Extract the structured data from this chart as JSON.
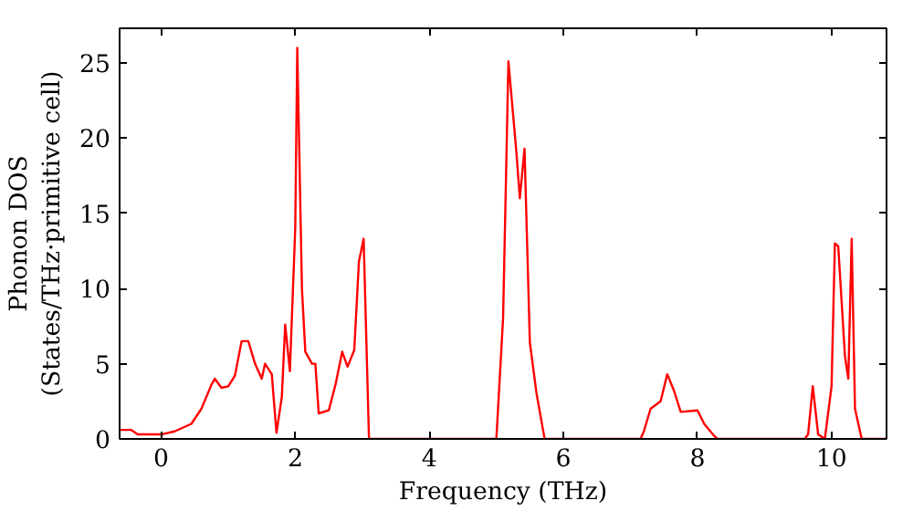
{
  "chart_data": {
    "type": "line",
    "xlabel": "Frequency (THz)",
    "ylabel": "Phonon DOS\n(States/THz·primitive cell)",
    "xlim": [
      -0.62,
      10.82
    ],
    "ylim": [
      0,
      27.3
    ],
    "xticks": [
      0,
      2,
      4,
      6,
      8,
      10
    ],
    "yticks": [
      0,
      5,
      10,
      15,
      20,
      25
    ],
    "grid": false,
    "series": [
      {
        "color": "#ff0000",
        "x": [
          -0.62,
          -0.45,
          -0.35,
          0,
          0.2,
          0.45,
          0.6,
          0.75,
          0.8,
          0.9,
          1.0,
          1.1,
          1.2,
          1.3,
          1.4,
          1.5,
          1.55,
          1.65,
          1.72,
          1.8,
          1.85,
          1.92,
          2.0,
          2.03,
          2.1,
          2.15,
          2.25,
          2.3,
          2.35,
          2.5,
          2.6,
          2.7,
          2.78,
          2.88,
          2.95,
          3.02,
          3.1,
          5.0,
          5.1,
          5.18,
          5.3,
          5.35,
          5.42,
          5.5,
          5.6,
          5.72,
          7.15,
          7.2,
          7.3,
          7.45,
          7.55,
          7.65,
          7.75,
          8.0,
          8.1,
          8.25,
          8.3,
          9.6,
          9.65,
          9.72,
          9.8,
          9.9,
          10.0,
          10.05,
          10.1,
          10.2,
          10.25,
          10.3,
          10.35,
          10.45,
          10.82
        ],
        "values": [
          0.6,
          0.6,
          0.3,
          0.3,
          0.5,
          1.0,
          2.0,
          3.6,
          4.0,
          3.4,
          3.5,
          4.2,
          6.5,
          6.5,
          5.0,
          4.0,
          5.0,
          4.3,
          0.4,
          2.8,
          7.6,
          4.5,
          14,
          26.0,
          10,
          5.8,
          5.0,
          5.0,
          1.7,
          1.9,
          3.6,
          5.8,
          4.8,
          5.9,
          11.8,
          13.3,
          0,
          0,
          8,
          25.1,
          19,
          16,
          19.3,
          6.4,
          3,
          0,
          0,
          0.5,
          2.0,
          2.5,
          4.3,
          3.2,
          1.8,
          1.9,
          1.0,
          0.2,
          0,
          0,
          0.3,
          3.5,
          0.3,
          0,
          3.5,
          13.0,
          12.8,
          5.5,
          4.0,
          13.3,
          2,
          0,
          0
        ]
      }
    ]
  }
}
